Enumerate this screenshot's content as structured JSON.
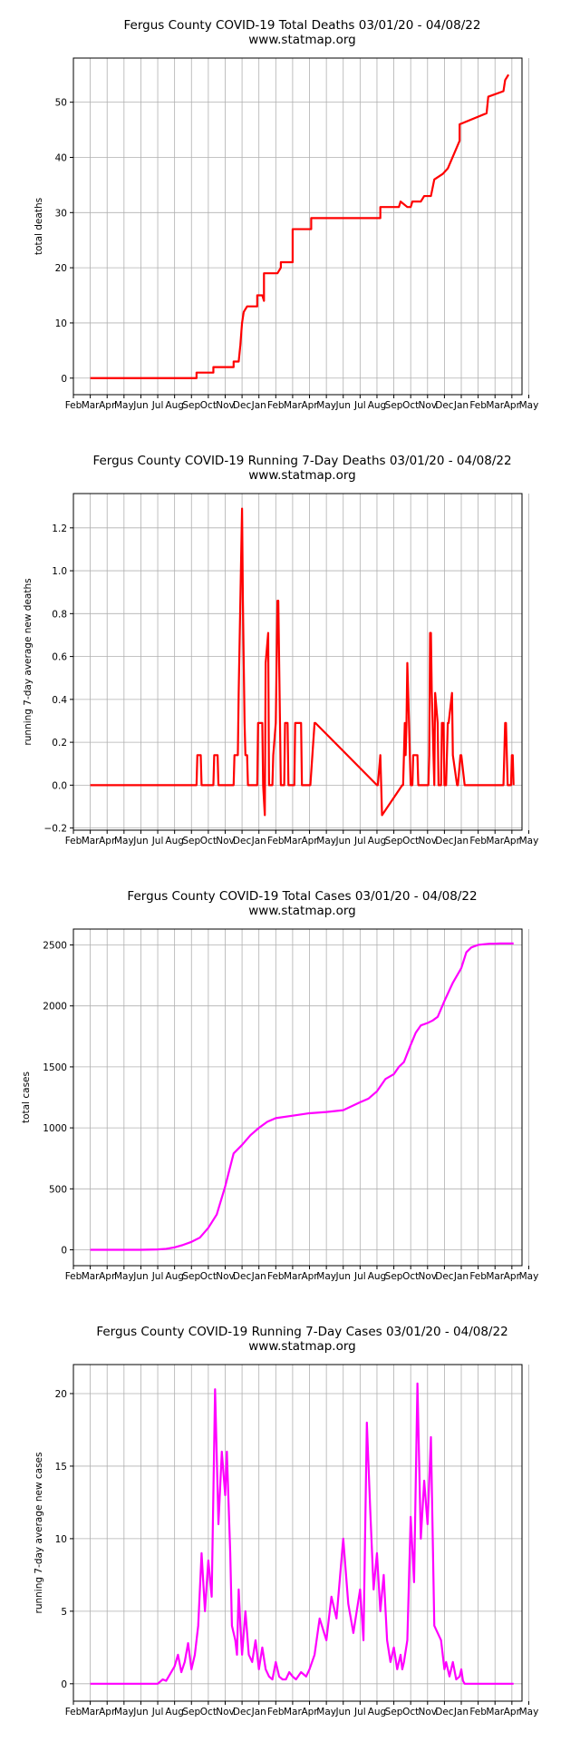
{
  "chart_data": [
    {
      "type": "line",
      "title": "Fergus County COVID-19 Total Deaths 03/01/20 - 04/08/22",
      "subtitle": "www.statmap.org",
      "xlabel": "",
      "ylabel": "total deaths",
      "color": "#ff0000",
      "ylim": [
        -3,
        58
      ],
      "yticks": [
        0,
        10,
        20,
        30,
        40,
        50
      ],
      "ytick_labels": [
        "0",
        "10",
        "20",
        "30",
        "40",
        "50"
      ],
      "xlim": [
        0,
        26.6
      ],
      "xtick_labels": [
        "Feb",
        "Mar",
        "Apr",
        "May",
        "Jun",
        "Jul",
        "Aug",
        "Sep",
        "Oct",
        "Nov",
        "Dec",
        "Jan",
        "Feb",
        "Mar",
        "Apr",
        "May",
        "Jun",
        "Jul",
        "Aug",
        "Sep",
        "Oct",
        "Nov",
        "Dec",
        "Jan",
        "Feb",
        "Mar",
        "Apr",
        "May"
      ],
      "grid": true,
      "series": [
        {
          "name": "total deaths",
          "x": [
            1.0,
            7.3,
            7.3,
            8.3,
            8.3,
            9.5,
            9.5,
            9.8,
            9.9,
            10.0,
            10.1,
            10.3,
            10.9,
            10.9,
            11.2,
            11.3,
            11.3,
            12.1,
            12.3,
            12.3,
            13.0,
            13.0,
            14.1,
            14.1,
            18.2,
            18.2,
            18.3,
            18.6,
            18.7,
            19.0,
            19.1,
            19.3,
            19.4,
            19.8,
            20.0,
            20.1,
            20.6,
            20.8,
            21.2,
            21.4,
            21.9,
            22.2,
            22.9,
            22.9,
            24.5,
            24.6,
            25.5,
            25.6,
            25.8
          ],
          "y": [
            0,
            0,
            1,
            1,
            2,
            2,
            3,
            3,
            6,
            10,
            12,
            13,
            13,
            15,
            15,
            14,
            19,
            19,
            20,
            21,
            21,
            27,
            27,
            29,
            29,
            31,
            31,
            31,
            31,
            31,
            31,
            31,
            32,
            31,
            31,
            32,
            32,
            33,
            33,
            36,
            37,
            38,
            43,
            46,
            48,
            51,
            52,
            54,
            55
          ]
        }
      ]
    },
    {
      "type": "line",
      "title": "Fergus County COVID-19 Running 7-Day Deaths 03/01/20 - 04/08/22",
      "subtitle": "www.statmap.org",
      "xlabel": "",
      "ylabel": "running 7-day average new deaths",
      "color": "#ff0000",
      "ylim": [
        -0.21,
        1.36
      ],
      "yticks": [
        -0.2,
        0.0,
        0.2,
        0.4,
        0.6,
        0.8,
        1.0,
        1.2
      ],
      "ytick_labels": [
        "−0.2",
        "0.0",
        "0.2",
        "0.4",
        "0.6",
        "0.8",
        "1.0",
        "1.2"
      ],
      "xlim": [
        0,
        26.6
      ],
      "xtick_labels": [
        "Feb",
        "Mar",
        "Apr",
        "May",
        "Jun",
        "Jul",
        "Aug",
        "Sep",
        "Oct",
        "Nov",
        "Dec",
        "Jan",
        "Feb",
        "Mar",
        "Apr",
        "May",
        "Jun",
        "Jul",
        "Aug",
        "Sep",
        "Oct",
        "Nov",
        "Dec",
        "Jan",
        "Feb",
        "Mar",
        "Apr",
        "May"
      ],
      "grid": true,
      "series": [
        {
          "name": "running 7-day average new deaths",
          "x": [
            1.0,
            7.3,
            7.35,
            7.55,
            7.6,
            8.3,
            8.35,
            8.55,
            8.6,
            9.5,
            9.55,
            9.75,
            9.8,
            9.9,
            10.0,
            10.05,
            10.1,
            10.15,
            10.2,
            10.3,
            10.35,
            10.45,
            10.9,
            10.95,
            11.2,
            11.25,
            11.35,
            11.4,
            11.55,
            11.6,
            11.8,
            11.85,
            12.0,
            12.1,
            12.15,
            12.25,
            12.3,
            12.35,
            12.5,
            12.55,
            12.7,
            12.75,
            13.1,
            13.15,
            13.5,
            13.55,
            14.0,
            14.05,
            14.3,
            14.35,
            18.0,
            18.05,
            18.2,
            18.25,
            18.3,
            19.5,
            19.55,
            19.6,
            19.65,
            19.7,
            19.75,
            19.8,
            19.85,
            19.9,
            19.95,
            20.0,
            20.1,
            20.15,
            20.4,
            20.45,
            21.0,
            21.05,
            21.1,
            21.15,
            21.2,
            21.25,
            21.3,
            21.35,
            21.4,
            21.45,
            21.6,
            21.65,
            21.8,
            21.85,
            21.95,
            22.0,
            22.05,
            22.1,
            22.2,
            22.25,
            22.45,
            22.5,
            22.75,
            22.8,
            22.95,
            23.0,
            23.2,
            23.25,
            23.6,
            23.65,
            23.9,
            23.95,
            24.1,
            24.15,
            24.3,
            24.35,
            24.6,
            24.65,
            24.9,
            24.95,
            25.5,
            25.55,
            25.6,
            25.65,
            25.7,
            25.75,
            25.8,
            25.85,
            25.95,
            26.0,
            26.05,
            26.1
          ],
          "y": [
            0,
            0,
            0.14,
            0.14,
            0,
            0,
            0.14,
            0.14,
            0,
            0,
            0.14,
            0.14,
            0.43,
            0.86,
            1.29,
            0.86,
            0.57,
            0.29,
            0.14,
            0.14,
            0,
            0,
            0,
            0.29,
            0.29,
            0,
            -0.14,
            0.57,
            0.71,
            0,
            0,
            0.14,
            0.29,
            0.86,
            0.86,
            0.29,
            0,
            0,
            0,
            0.29,
            0.29,
            0,
            0,
            0.29,
            0.29,
            0,
            0,
            0,
            0.29,
            0.29,
            0,
            0,
            0.14,
            0,
            -0.14,
            0,
            0,
            0.14,
            0.29,
            0.14,
            0.29,
            0.57,
            0.43,
            0.29,
            0.14,
            0,
            0,
            0.14,
            0.14,
            0,
            0,
            0,
            0.14,
            0.71,
            0.71,
            0.43,
            0.29,
            0.14,
            0,
            0.43,
            0.29,
            0,
            0,
            0.29,
            0.29,
            0,
            0,
            0,
            0.29,
            0.29,
            0.43,
            0.14,
            0,
            0,
            0.14,
            0.14,
            0,
            0,
            0,
            0,
            0,
            0,
            0,
            0,
            0,
            0,
            0,
            0,
            0,
            0,
            0,
            0.14,
            0.29,
            0.29,
            0.14,
            0,
            0,
            0,
            0,
            0.14,
            0.14,
            0
          ]
        }
      ]
    },
    {
      "type": "line",
      "title": "Fergus County COVID-19 Total Cases 03/01/20 - 04/08/22",
      "subtitle": "www.statmap.org",
      "xlabel": "",
      "ylabel": "total cases",
      "color": "#ff00ff",
      "ylim": [
        -130,
        2630
      ],
      "yticks": [
        0,
        500,
        1000,
        1500,
        2000,
        2500
      ],
      "ytick_labels": [
        "0",
        "500",
        "1000",
        "1500",
        "2000",
        "2500"
      ],
      "xlim": [
        0,
        26.6
      ],
      "xtick_labels": [
        "Feb",
        "Mar",
        "Apr",
        "May",
        "Jun",
        "Jul",
        "Aug",
        "Sep",
        "Oct",
        "Nov",
        "Dec",
        "Jan",
        "Feb",
        "Mar",
        "Apr",
        "May",
        "Jun",
        "Jul",
        "Aug",
        "Sep",
        "Oct",
        "Nov",
        "Dec",
        "Jan",
        "Feb",
        "Mar",
        "Apr",
        "May"
      ],
      "grid": true,
      "series": [
        {
          "name": "total cases",
          "x": [
            1.0,
            4.0,
            5.0,
            5.5,
            6.0,
            6.5,
            7.0,
            7.5,
            8.0,
            8.5,
            9.0,
            9.5,
            10.0,
            10.5,
            11.0,
            11.5,
            12.0,
            13.0,
            14.0,
            15.0,
            16.0,
            17.0,
            17.5,
            18.0,
            18.5,
            19.0,
            19.3,
            19.6,
            20.0,
            20.3,
            20.6,
            21.0,
            21.3,
            21.6,
            22.0,
            22.5,
            23.0,
            23.3,
            23.6,
            24.0,
            24.3,
            24.7,
            25.0,
            25.3,
            25.6,
            26.0,
            26.1
          ],
          "y": [
            0,
            0,
            3,
            8,
            20,
            40,
            65,
            100,
            180,
            290,
            520,
            790,
            860,
            940,
            1000,
            1050,
            1080,
            1100,
            1120,
            1130,
            1145,
            1210,
            1240,
            1300,
            1400,
            1440,
            1500,
            1540,
            1680,
            1780,
            1840,
            1860,
            1880,
            1910,
            2040,
            2190,
            2310,
            2440,
            2480,
            2500,
            2505,
            2510,
            2510,
            2512,
            2512,
            2512,
            2512
          ]
        }
      ]
    },
    {
      "type": "line",
      "title": "Fergus County COVID-19 Running 7-Day Cases 03/01/20 - 04/08/22",
      "subtitle": "www.statmap.org",
      "xlabel": "",
      "ylabel": "running 7-day average new cases",
      "color": "#ff00ff",
      "ylim": [
        -1.2,
        22.0
      ],
      "yticks": [
        0,
        5,
        10,
        15,
        20
      ],
      "ytick_labels": [
        "0",
        "5",
        "10",
        "15",
        "20"
      ],
      "xlim": [
        0,
        26.6
      ],
      "xtick_labels": [
        "Feb",
        "Mar",
        "Apr",
        "May",
        "Jun",
        "Jul",
        "Aug",
        "Sep",
        "Oct",
        "Nov",
        "Dec",
        "Jan",
        "Feb",
        "Mar",
        "Apr",
        "May",
        "Jun",
        "Jul",
        "Aug",
        "Sep",
        "Oct",
        "Nov",
        "Dec",
        "Jan",
        "Feb",
        "Mar",
        "Apr",
        "May"
      ],
      "grid": true,
      "series": [
        {
          "name": "running 7-day average new cases",
          "x": [
            1.0,
            5.0,
            5.3,
            5.5,
            5.7,
            6.0,
            6.2,
            6.4,
            6.6,
            6.8,
            7.0,
            7.2,
            7.4,
            7.6,
            7.8,
            8.0,
            8.2,
            8.4,
            8.6,
            8.8,
            9.0,
            9.1,
            9.2,
            9.3,
            9.4,
            9.5,
            9.6,
            9.7,
            9.8,
            9.9,
            10.0,
            10.2,
            10.4,
            10.6,
            10.8,
            11.0,
            11.2,
            11.4,
            11.6,
            11.8,
            12.0,
            12.2,
            12.4,
            12.6,
            12.8,
            13.0,
            13.2,
            13.5,
            13.8,
            14.0,
            14.3,
            14.6,
            15.0,
            15.3,
            15.6,
            16.0,
            16.3,
            16.6,
            17.0,
            17.2,
            17.4,
            17.6,
            17.8,
            18.0,
            18.2,
            18.4,
            18.6,
            18.8,
            19.0,
            19.2,
            19.4,
            19.5,
            19.6,
            19.8,
            20.0,
            20.2,
            20.4,
            20.6,
            20.8,
            21.0,
            21.2,
            21.4,
            21.6,
            21.8,
            22.0,
            22.1,
            22.3,
            22.5,
            22.7,
            22.9,
            23.0,
            23.1,
            23.2,
            23.3,
            23.4,
            23.5,
            23.6,
            23.7,
            23.8,
            24.0,
            24.2,
            24.4,
            24.6,
            24.8,
            25.0,
            25.2,
            25.5,
            25.8,
            26.0,
            26.1
          ],
          "y": [
            0,
            0,
            0.3,
            0.2,
            0.6,
            1.2,
            2.0,
            0.8,
            1.5,
            2.8,
            1.0,
            2.0,
            4.0,
            9.0,
            5.0,
            8.5,
            6.0,
            20.3,
            11.0,
            16.0,
            13.0,
            16.0,
            12.5,
            9.0,
            4.0,
            3.5,
            3.0,
            2.0,
            6.5,
            4.0,
            2.0,
            5.0,
            2.0,
            1.5,
            3.0,
            1.0,
            2.5,
            1.0,
            0.5,
            0.3,
            1.5,
            0.5,
            0.3,
            0.3,
            0.8,
            0.5,
            0.3,
            0.8,
            0.5,
            1.0,
            2.0,
            4.5,
            3.0,
            6.0,
            4.5,
            10.0,
            5.5,
            3.5,
            6.5,
            3.0,
            18.0,
            12.0,
            6.5,
            9.0,
            5.0,
            7.5,
            3.0,
            1.5,
            2.5,
            1.0,
            2.0,
            1.0,
            1.5,
            3.0,
            11.5,
            7.0,
            20.7,
            10.0,
            14.0,
            11.0,
            17.0,
            4.0,
            3.5,
            3.0,
            1.0,
            1.5,
            0.5,
            1.5,
            0.3,
            0.5,
            1.0,
            0.2,
            0,
            0,
            0,
            0,
            0,
            0,
            0,
            0,
            0,
            0,
            0,
            0,
            0,
            0,
            0,
            0,
            0,
            0
          ]
        }
      ]
    }
  ]
}
